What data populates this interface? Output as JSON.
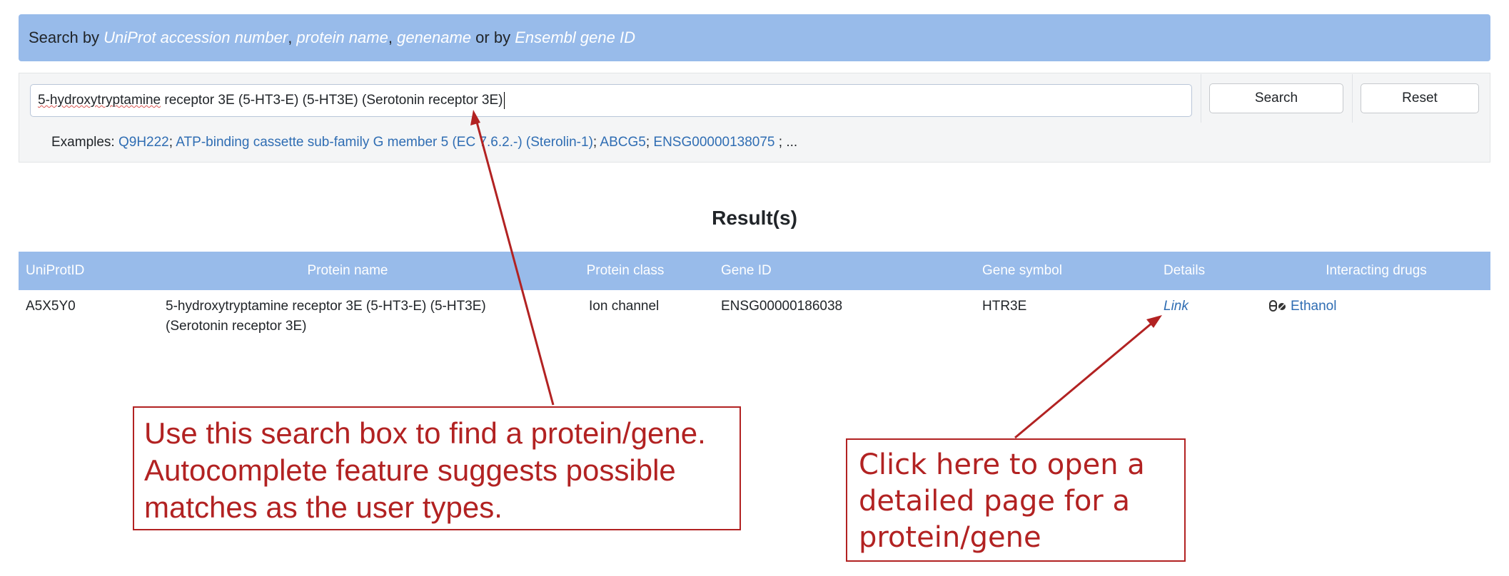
{
  "header": {
    "prefix": "Search by ",
    "term_accession": "UniProt accession number",
    "sep1": ", ",
    "term_protein": "protein name",
    "sep2": ", ",
    "term_gene": "genename",
    "sep3": " or by ",
    "term_ensembl": "Ensembl gene ID"
  },
  "search": {
    "value_misspelled": "5-hydroxytryptamine",
    "value_rest": " receptor 3E (5-HT3-E) (5-HT3E) (Serotonin receptor 3E)",
    "search_label": "Search",
    "reset_label": "Reset"
  },
  "examples": {
    "label": "Examples: ",
    "items": [
      "Q9H222",
      "ATP-binding cassette sub-family G member 5 (EC 7.6.2.-) (Sterolin-1)",
      "ABCG5",
      "ENSG00000138075"
    ],
    "sep": "; ",
    "trail": " ; ..."
  },
  "results": {
    "title": "Result(s)",
    "columns": [
      "UniProtID",
      "Protein name",
      "Protein class",
      "Gene ID",
      "Gene symbol",
      "Details",
      "Interacting drugs"
    ],
    "rows": [
      {
        "uniprot_id": "A5X5Y0",
        "protein_name_line1": "5-hydroxytryptamine receptor 3E (5-HT3-E) (5-HT3E)",
        "protein_name_line2": "(Serotonin receptor 3E)",
        "protein_class": "Ion channel",
        "gene_id": "ENSG00000186038",
        "gene_symbol": "HTR3E",
        "details_link": "Link",
        "drug_icon": "pills-icon",
        "drug": "Ethanol"
      }
    ]
  },
  "annotations": {
    "search_note_line1": "Use this search box to find a protein/gene.",
    "search_note_line2": "Autocomplete feature suggests possible",
    "search_note_line3": "matches as the user types.",
    "link_note_line1": "Click here to open a",
    "link_note_line2": "detailed page for a",
    "link_note_line3": "protein/gene"
  },
  "colors": {
    "header_bg": "#98bbea",
    "link": "#2f6db3",
    "annotation": "#b22222"
  }
}
